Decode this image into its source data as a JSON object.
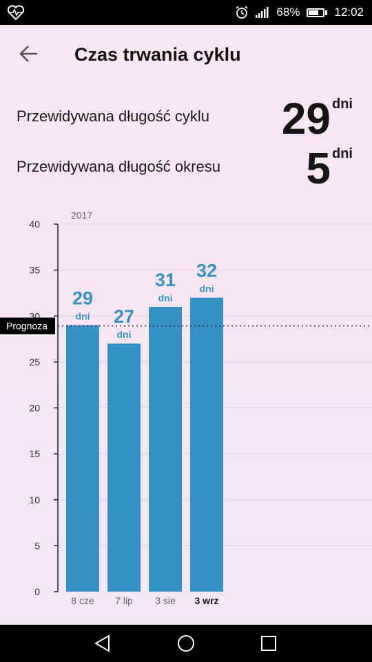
{
  "status_bar": {
    "battery_percent": "68%",
    "battery_level": 0.68,
    "time": "12:02",
    "icons": [
      "heart-rate-icon",
      "alarm-icon",
      "signal-icon",
      "battery-icon"
    ]
  },
  "header": {
    "title": "Czas trwania cyklu",
    "back_icon": "arrow-left-icon"
  },
  "summary": {
    "cycle_label": "Przewidywana długość cyklu",
    "cycle_value": "29",
    "cycle_unit": "dni",
    "period_label": "Przewidywana długość okresu",
    "period_value": "5",
    "period_unit": "dni"
  },
  "chart_data": {
    "type": "bar",
    "year_label": "2017",
    "categories": [
      "8 cze",
      "7 lip",
      "3 sie",
      "3 wrz"
    ],
    "values": [
      29,
      27,
      31,
      32
    ],
    "value_labels": [
      "29",
      "27",
      "31",
      "32"
    ],
    "unit": "dni",
    "current_index": 3,
    "forecast": {
      "label": "Prognoza",
      "value": 29
    },
    "yticks": [
      "0",
      "5",
      "10",
      "15",
      "20",
      "25",
      "30",
      "35",
      "40"
    ],
    "ylim": [
      0,
      40
    ],
    "grid": true,
    "bar_color": "#3592c9"
  },
  "navbar": {
    "icons": [
      "back-triangle-icon",
      "home-circle-icon",
      "recents-square-icon"
    ]
  }
}
